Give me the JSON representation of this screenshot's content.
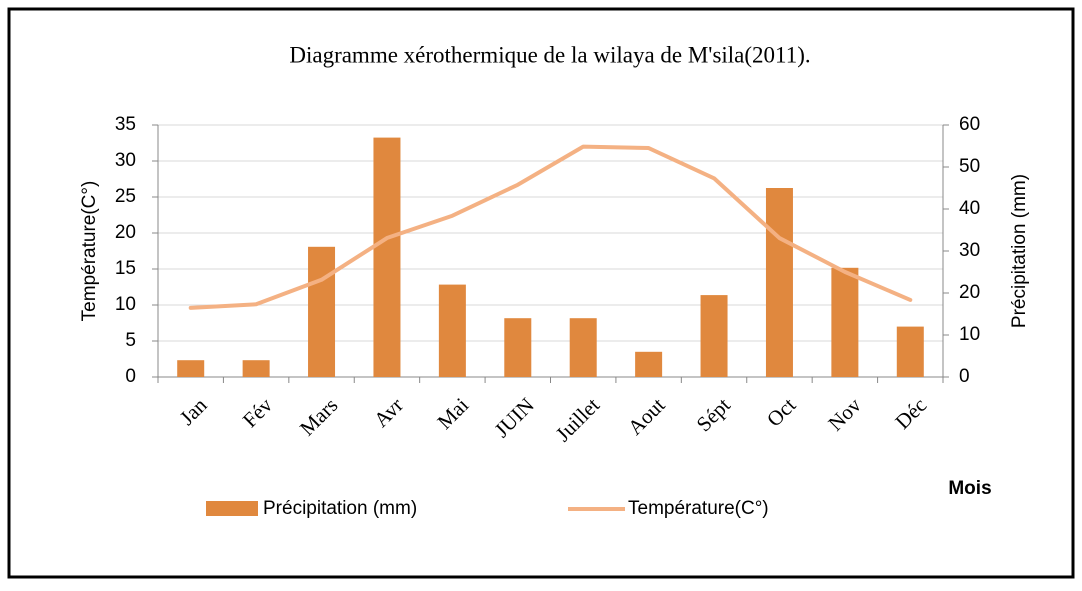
{
  "chart_data": {
    "type": "bar_line",
    "title": "Diagramme xérothermique de la wilaya de M'sila(2011).",
    "ylabel": "Température(C°)",
    "y2label": "Précipitation (mm)",
    "xlabel": "Mois",
    "categories": [
      "Jan",
      "Fév",
      "Mars",
      "Avr",
      "Mai",
      "JUIN",
      "Juillet",
      "Aout",
      "Sépt",
      "Oct",
      "Nov",
      "Déc"
    ],
    "series": [
      {
        "name": "Précipitation (mm)",
        "type": "bar",
        "axis": "y2",
        "color": "#e0883e",
        "values": [
          4,
          4,
          31,
          57,
          22,
          14,
          14,
          6,
          19.5,
          45,
          26,
          12
        ]
      },
      {
        "name": "Température(C°)",
        "type": "line",
        "axis": "y",
        "color": "#f4b183",
        "values": [
          9.6,
          10.1,
          13.5,
          19.3,
          22.4,
          26.7,
          32,
          31.8,
          27.6,
          19.3,
          14.6,
          10.7
        ]
      }
    ],
    "ylim": [
      0,
      35
    ],
    "yticks": [
      0,
      5,
      10,
      15,
      20,
      25,
      30,
      35
    ],
    "y2lim": [
      0,
      60
    ],
    "y2ticks": [
      0,
      10,
      20,
      30,
      40,
      50,
      60
    ],
    "grid": true,
    "legend": "bottom"
  }
}
